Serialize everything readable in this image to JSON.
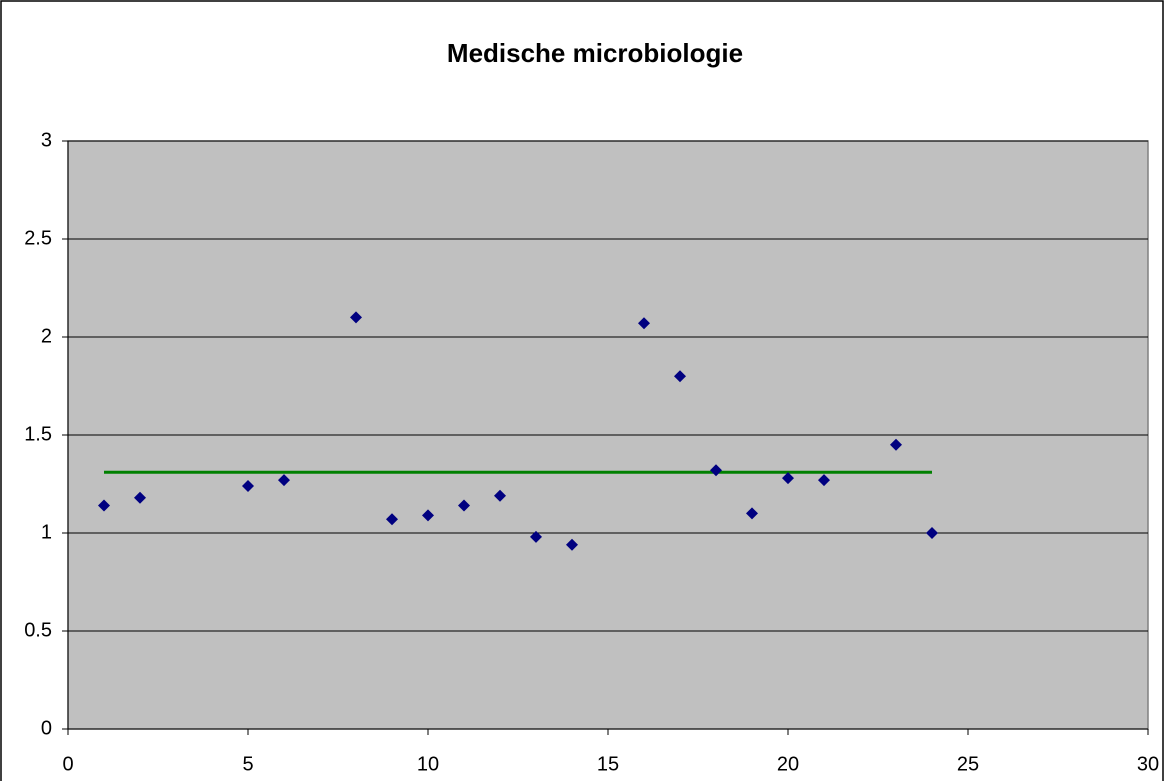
{
  "chart_data": {
    "type": "scatter",
    "title": "Medische microbiologie",
    "series": [
      {
        "type": "scatter",
        "color": "#000080",
        "x": [
          1,
          2,
          5,
          6,
          8,
          9,
          10,
          11,
          12,
          13,
          14,
          16,
          17,
          18,
          19,
          20,
          21,
          23,
          24
        ],
        "values": [
          1.14,
          1.18,
          1.24,
          1.27,
          2.1,
          1.07,
          1.09,
          1.14,
          1.19,
          0.98,
          0.94,
          2.07,
          1.8,
          1.32,
          1.1,
          1.28,
          1.27,
          1.45,
          1.0
        ]
      },
      {
        "type": "line",
        "color": "#008000",
        "x": [
          1,
          24
        ],
        "values": [
          1.31,
          1.31
        ]
      }
    ],
    "xlim": [
      0,
      30
    ],
    "xticks": [
      0,
      5,
      10,
      15,
      20,
      25,
      30
    ],
    "ylim": [
      0,
      3
    ],
    "yticks": [
      0,
      0.5,
      1,
      1.5,
      2,
      2.5,
      3
    ],
    "grid": true
  }
}
